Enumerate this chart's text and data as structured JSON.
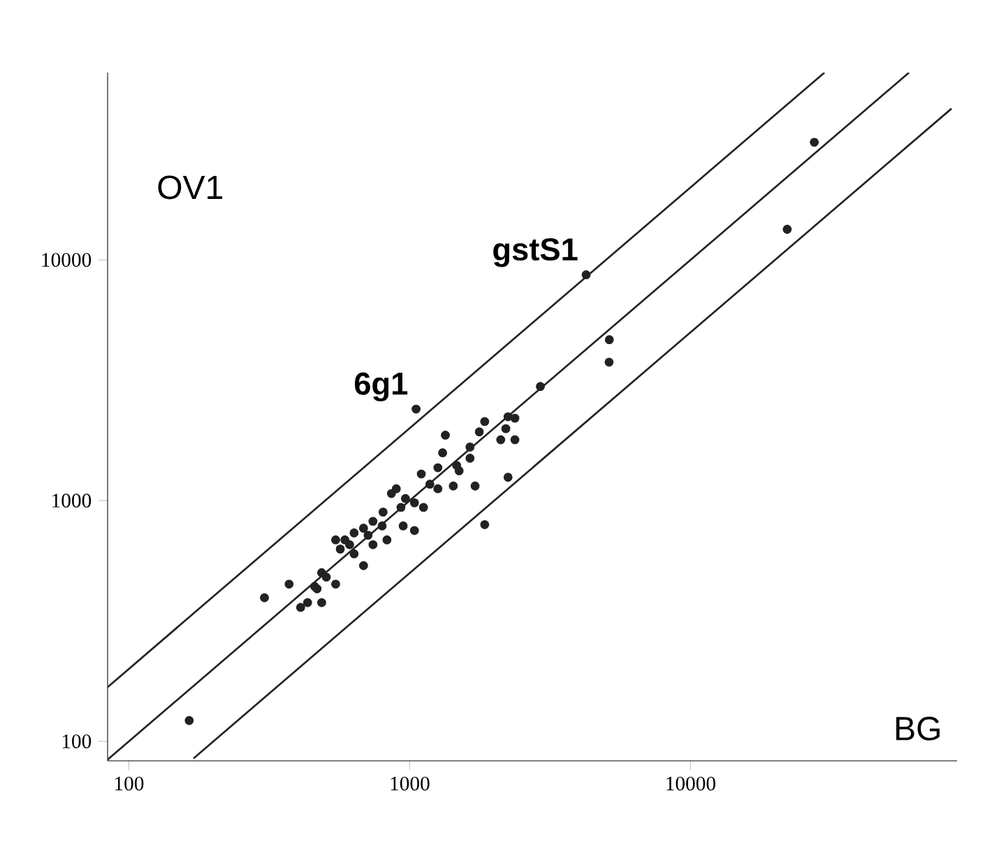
{
  "chart_data": {
    "type": "scatter",
    "xlabel": "BG",
    "ylabel": "OV1",
    "log": "xy",
    "xlim": [
      84,
      89000
    ],
    "ylim": [
      83,
      60000
    ],
    "xticks": [
      100,
      1000,
      10000
    ],
    "yticks": [
      100,
      1000,
      10000
    ],
    "annotations": [
      {
        "text": "6g1",
        "x": 1054,
        "y": 2400
      },
      {
        "text": "gstS1",
        "x": 4250,
        "y": 8670
      }
    ],
    "series": [
      {
        "marker": "circle",
        "color": "#222222",
        "x": [
          164,
          304,
          27600,
          22100,
          4250,
          5140,
          5130,
          2920,
          1054,
          2240,
          2370,
          1850,
          1770,
          2200,
          2110,
          2370,
          1340,
          1640,
          1310,
          1640,
          1470,
          1500,
          1260,
          1100,
          2240,
          1710,
          1430,
          1260,
          1180,
          1850,
          896,
          966,
          1040,
          1120,
          931,
          861,
          804,
          948,
          1040,
          798,
          740,
          685,
          711,
          634,
          588,
          545,
          566,
          634,
          611,
          740,
          830,
          685,
          486,
          505,
          459,
          545,
          468,
          372,
          486,
          433,
          409
        ],
        "values": [
          122,
          395,
          30800,
          13400,
          8670,
          4660,
          3760,
          2980,
          2400,
          2230,
          2200,
          2130,
          1930,
          1990,
          1790,
          1790,
          1870,
          1670,
          1580,
          1500,
          1400,
          1330,
          1370,
          1290,
          1250,
          1150,
          1150,
          1120,
          1170,
          795,
          1120,
          1020,
          979,
          937,
          937,
          1070,
          896,
          785,
          751,
          785,
          820,
          768,
          718,
          734,
          687,
          687,
          629,
          601,
          656,
          656,
          687,
          537,
          502,
          481,
          440,
          450,
          430,
          450,
          377,
          377,
          360
        ]
      },
      {
        "type": "line",
        "marker": "none",
        "color": "#222222",
        "x": [
          84,
          30000
        ],
        "values": [
          168,
          60000
        ]
      },
      {
        "type": "line",
        "marker": "none",
        "color": "#222222",
        "x": [
          84,
          60000
        ],
        "values": [
          84,
          60000
        ]
      },
      {
        "type": "line",
        "marker": "none",
        "color": "#222222",
        "x": [
          170,
          85000
        ],
        "values": [
          85,
          42500
        ]
      }
    ]
  }
}
